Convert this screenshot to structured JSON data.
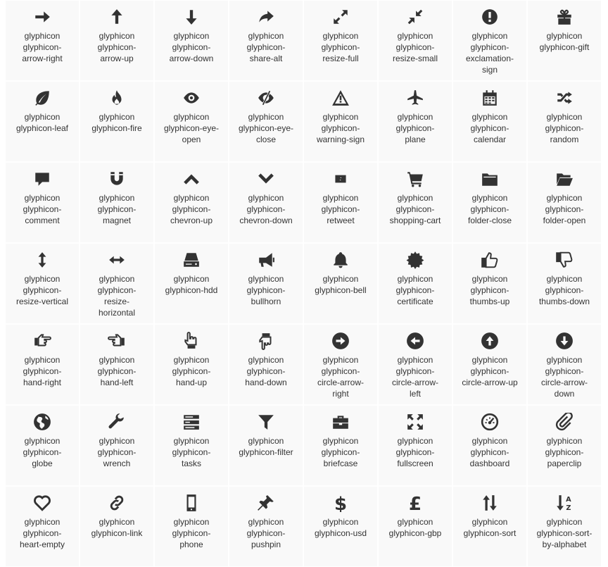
{
  "colors": {
    "icon": "#333333",
    "text": "#333333",
    "cell_bg": "#f9f9f9",
    "gap": "#ffffff"
  },
  "icons": [
    {
      "icon": "arrow-right",
      "label": "glyphicon\nglyphicon-\narrow-right"
    },
    {
      "icon": "arrow-up",
      "label": "glyphicon\nglyphicon-\narrow-up"
    },
    {
      "icon": "arrow-down",
      "label": "glyphicon\nglyphicon-\narrow-down"
    },
    {
      "icon": "share-alt",
      "label": "glyphicon\nglyphicon-\nshare-alt"
    },
    {
      "icon": "resize-full",
      "label": "glyphicon\nglyphicon-\nresize-full"
    },
    {
      "icon": "resize-small",
      "label": "glyphicon\nglyphicon-\nresize-small"
    },
    {
      "icon": "exclamation-sign",
      "label": "glyphicon\nglyphicon-\nexclamation-\nsign"
    },
    {
      "icon": "gift",
      "label": "glyphicon\nglyphicon-gift"
    },
    {
      "icon": "leaf",
      "label": "glyphicon\nglyphicon-leaf"
    },
    {
      "icon": "fire",
      "label": "glyphicon\nglyphicon-fire"
    },
    {
      "icon": "eye-open",
      "label": "glyphicon\nglyphicon-eye-\nopen"
    },
    {
      "icon": "eye-close",
      "label": "glyphicon\nglyphicon-eye-\nclose"
    },
    {
      "icon": "warning-sign",
      "label": "glyphicon\nglyphicon-\nwarning-sign"
    },
    {
      "icon": "plane",
      "label": "glyphicon\nglyphicon-\nplane"
    },
    {
      "icon": "calendar",
      "label": "glyphicon\nglyphicon-\ncalendar"
    },
    {
      "icon": "random",
      "label": "glyphicon\nglyphicon-\nrandom"
    },
    {
      "icon": "comment",
      "label": "glyphicon\nglyphicon-\ncomment"
    },
    {
      "icon": "magnet",
      "label": "glyphicon\nglyphicon-\nmagnet"
    },
    {
      "icon": "chevron-up",
      "label": "glyphicon\nglyphicon-\nchevron-up"
    },
    {
      "icon": "chevron-down",
      "label": "glyphicon\nglyphicon-\nchevron-down"
    },
    {
      "icon": "retweet",
      "label": "glyphicon\nglyphicon-\nretweet"
    },
    {
      "icon": "shopping-cart",
      "label": "glyphicon\nglyphicon-\nshopping-cart"
    },
    {
      "icon": "folder-close",
      "label": "glyphicon\nglyphicon-\nfolder-close"
    },
    {
      "icon": "folder-open",
      "label": "glyphicon\nglyphicon-\nfolder-open"
    },
    {
      "icon": "resize-vertical",
      "label": "glyphicon\nglyphicon-\nresize-vertical"
    },
    {
      "icon": "resize-horizontal",
      "label": "glyphicon\nglyphicon-\nresize-\nhorizontal"
    },
    {
      "icon": "hdd",
      "label": "glyphicon\nglyphicon-hdd"
    },
    {
      "icon": "bullhorn",
      "label": "glyphicon\nglyphicon-\nbullhorn"
    },
    {
      "icon": "bell",
      "label": "glyphicon\nglyphicon-bell"
    },
    {
      "icon": "certificate",
      "label": "glyphicon\nglyphicon-\ncertificate"
    },
    {
      "icon": "thumbs-up",
      "label": "glyphicon\nglyphicon-\nthumbs-up"
    },
    {
      "icon": "thumbs-down",
      "label": "glyphicon\nglyphicon-\nthumbs-down"
    },
    {
      "icon": "hand-right",
      "label": "glyphicon\nglyphicon-\nhand-right"
    },
    {
      "icon": "hand-left",
      "label": "glyphicon\nglyphicon-\nhand-left"
    },
    {
      "icon": "hand-up",
      "label": "glyphicon\nglyphicon-\nhand-up"
    },
    {
      "icon": "hand-down",
      "label": "glyphicon\nglyphicon-\nhand-down"
    },
    {
      "icon": "circle-arrow-right",
      "label": "glyphicon\nglyphicon-\ncircle-arrow-\nright"
    },
    {
      "icon": "circle-arrow-left",
      "label": "glyphicon\nglyphicon-\ncircle-arrow-\nleft"
    },
    {
      "icon": "circle-arrow-up",
      "label": "glyphicon\nglyphicon-\ncircle-arrow-up"
    },
    {
      "icon": "circle-arrow-down",
      "label": "glyphicon\nglyphicon-\ncircle-arrow-\ndown"
    },
    {
      "icon": "globe",
      "label": "glyphicon\nglyphicon-\nglobe"
    },
    {
      "icon": "wrench",
      "label": "glyphicon\nglyphicon-\nwrench"
    },
    {
      "icon": "tasks",
      "label": "glyphicon\nglyphicon-\ntasks"
    },
    {
      "icon": "filter",
      "label": "glyphicon\nglyphicon-filter"
    },
    {
      "icon": "briefcase",
      "label": "glyphicon\nglyphicon-\nbriefcase"
    },
    {
      "icon": "fullscreen",
      "label": "glyphicon\nglyphicon-\nfullscreen"
    },
    {
      "icon": "dashboard",
      "label": "glyphicon\nglyphicon-\ndashboard"
    },
    {
      "icon": "paperclip",
      "label": "glyphicon\nglyphicon-\npaperclip"
    },
    {
      "icon": "heart-empty",
      "label": "glyphicon\nglyphicon-\nheart-empty"
    },
    {
      "icon": "link",
      "label": "glyphicon\nglyphicon-link"
    },
    {
      "icon": "phone",
      "label": "glyphicon\nglyphicon-\nphone"
    },
    {
      "icon": "pushpin",
      "label": "glyphicon\nglyphicon-\npushpin"
    },
    {
      "icon": "usd",
      "label": "glyphicon\nglyphicon-usd"
    },
    {
      "icon": "gbp",
      "label": "glyphicon\nglyphicon-gbp"
    },
    {
      "icon": "sort",
      "label": "glyphicon\nglyphicon-sort"
    },
    {
      "icon": "sort-by-alphabet",
      "label": "glyphicon\nglyphicon-sort-\nby-alphabet"
    }
  ]
}
